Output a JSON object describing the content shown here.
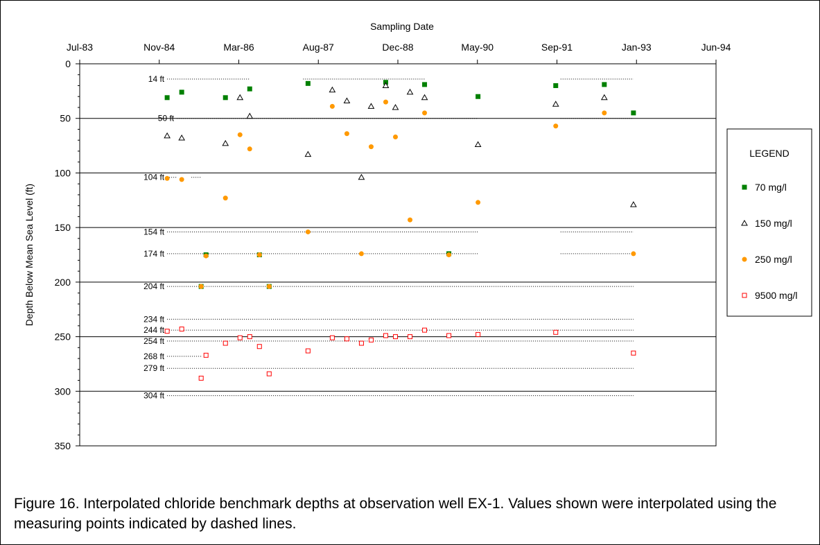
{
  "chart_data": {
    "type": "scatter",
    "x_axis": {
      "title": "Sampling Date",
      "position": "top",
      "ticks": [
        "Jul-83",
        "Nov-84",
        "Mar-86",
        "Aug-87",
        "Dec-88",
        "May-90",
        "Sep-91",
        "Jan-93",
        "Jun-94"
      ],
      "range": [
        "1983-07",
        "1994-06"
      ]
    },
    "y_axis": {
      "title": "Depth Below Mean Sea Level (ft)",
      "range": [
        0,
        350
      ],
      "inverted": true,
      "ticks": [
        0,
        50,
        100,
        150,
        200,
        250,
        300,
        350
      ]
    },
    "gridlines_y": [
      50,
      100,
      150,
      200,
      250,
      300
    ],
    "measuring_points": [
      {
        "label": "14 ft",
        "depth": 14,
        "segments": [
          [
            "1985-01",
            "1986-06"
          ],
          [
            "1987-05",
            "1989-06"
          ],
          [
            "1991-10",
            "1993-01"
          ]
        ]
      },
      {
        "label": "50 ft",
        "depth": 50,
        "segments": [
          [
            "1985-03",
            "1990-05"
          ],
          [
            "1991-10",
            "1993-01"
          ]
        ]
      },
      {
        "label": "104 ft",
        "depth": 104,
        "segments": [
          [
            "1985-01",
            "1985-03"
          ],
          [
            "1985-06",
            "1985-08"
          ]
        ]
      },
      {
        "label": "154 ft",
        "depth": 154,
        "segments": [
          [
            "1985-01",
            "1990-05"
          ],
          [
            "1991-10",
            "1993-01"
          ]
        ]
      },
      {
        "label": "174 ft",
        "depth": 174,
        "segments": [
          [
            "1985-01",
            "1990-05"
          ],
          [
            "1991-10",
            "1993-01"
          ]
        ]
      },
      {
        "label": "204 ft",
        "depth": 204,
        "segments": [
          [
            "1985-01",
            "1993-01"
          ]
        ]
      },
      {
        "label": "234 ft",
        "depth": 234,
        "segments": [
          [
            "1985-01",
            "1993-01"
          ]
        ]
      },
      {
        "label": "244 ft",
        "depth": 244,
        "segments": [
          [
            "1985-01",
            "1993-01"
          ]
        ]
      },
      {
        "label": "254 ft",
        "depth": 254,
        "segments": [
          [
            "1985-01",
            "1993-01"
          ]
        ]
      },
      {
        "label": "268 ft",
        "depth": 268,
        "segments": [
          [
            "1985-01",
            "1985-08"
          ]
        ]
      },
      {
        "label": "279 ft",
        "depth": 279,
        "segments": [
          [
            "1985-01",
            "1993-01"
          ]
        ]
      },
      {
        "label": "304 ft",
        "depth": 304,
        "segments": [
          [
            "1985-01",
            "1993-01"
          ]
        ]
      }
    ],
    "legend": {
      "title": "LEGEND",
      "placement": "right"
    },
    "series": [
      {
        "name": "70 mg/l",
        "marker": "filled-square",
        "color": "#008000",
        "points": [
          [
            "1985-01",
            31
          ],
          [
            "1985-04",
            26
          ],
          [
            "1986-01",
            31
          ],
          [
            "1986-06",
            23
          ],
          [
            "1987-06",
            18
          ],
          [
            "1988-10",
            17
          ],
          [
            "1989-06",
            19
          ],
          [
            "1990-05",
            30
          ],
          [
            "1991-09",
            20
          ],
          [
            "1992-07",
            19
          ],
          [
            "1993-01",
            45
          ],
          [
            "1985-09",
            175
          ],
          [
            "1986-08",
            175
          ],
          [
            "1989-11",
            174
          ],
          [
            "1985-08",
            204
          ],
          [
            "1986-10",
            204
          ]
        ]
      },
      {
        "name": "150 mg/l",
        "marker": "open-triangle",
        "color": "#000000",
        "points": [
          [
            "1985-01",
            66
          ],
          [
            "1985-04",
            68
          ],
          [
            "1986-01",
            73
          ],
          [
            "1986-04",
            31
          ],
          [
            "1986-06",
            48
          ],
          [
            "1987-06",
            83
          ],
          [
            "1987-11",
            24
          ],
          [
            "1988-02",
            34
          ],
          [
            "1988-05",
            104
          ],
          [
            "1988-07",
            39
          ],
          [
            "1988-10",
            20
          ],
          [
            "1988-12",
            40
          ],
          [
            "1989-03",
            26
          ],
          [
            "1989-06",
            31
          ],
          [
            "1990-05",
            74
          ],
          [
            "1991-09",
            37
          ],
          [
            "1992-07",
            31
          ],
          [
            "1993-01",
            129
          ]
        ]
      },
      {
        "name": "250 mg/l",
        "marker": "filled-circle",
        "color": "#FF9900",
        "points": [
          [
            "1985-01",
            105
          ],
          [
            "1985-04",
            106
          ],
          [
            "1986-01",
            123
          ],
          [
            "1986-04",
            65
          ],
          [
            "1986-06",
            78
          ],
          [
            "1987-11",
            39
          ],
          [
            "1988-02",
            64
          ],
          [
            "1988-07",
            76
          ],
          [
            "1988-10",
            35
          ],
          [
            "1988-12",
            67
          ],
          [
            "1989-03",
            143
          ],
          [
            "1989-06",
            45
          ],
          [
            "1990-05",
            127
          ],
          [
            "1991-09",
            57
          ],
          [
            "1992-07",
            45
          ],
          [
            "1993-01",
            174
          ],
          [
            "1985-09",
            176
          ],
          [
            "1986-08",
            175
          ],
          [
            "1987-06",
            154
          ],
          [
            "1988-05",
            174
          ],
          [
            "1989-11",
            175
          ],
          [
            "1985-08",
            204
          ],
          [
            "1986-10",
            204
          ]
        ]
      },
      {
        "name": "9500 mg/l",
        "marker": "open-square",
        "color": "#FF0000",
        "points": [
          [
            "1985-01",
            245
          ],
          [
            "1985-04",
            243
          ],
          [
            "1985-08",
            288
          ],
          [
            "1985-09",
            267
          ],
          [
            "1986-01",
            256
          ],
          [
            "1986-04",
            251
          ],
          [
            "1986-06",
            250
          ],
          [
            "1986-08",
            259
          ],
          [
            "1986-10",
            284
          ],
          [
            "1987-06",
            263
          ],
          [
            "1987-11",
            251
          ],
          [
            "1988-02",
            252
          ],
          [
            "1988-05",
            256
          ],
          [
            "1988-07",
            253
          ],
          [
            "1988-10",
            249
          ],
          [
            "1988-12",
            250
          ],
          [
            "1989-03",
            250
          ],
          [
            "1989-06",
            244
          ],
          [
            "1989-11",
            249
          ],
          [
            "1990-05",
            248
          ],
          [
            "1991-09",
            246
          ],
          [
            "1993-01",
            265
          ]
        ]
      }
    ]
  },
  "caption": "Figure 16.  Interpolated chloride benchmark depths at observation well EX-1.  Values shown were interpolated using the measuring points indicated by dashed lines."
}
